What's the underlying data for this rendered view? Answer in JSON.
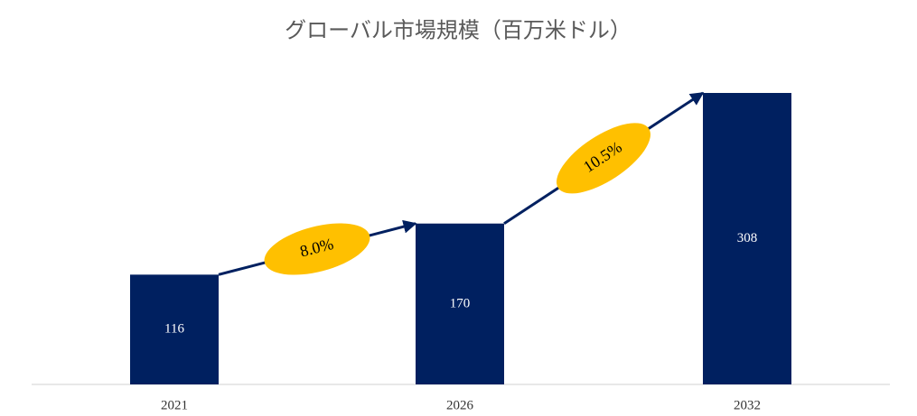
{
  "chart_data": {
    "type": "bar",
    "title": "グローバル市場規模（百万米ドル）",
    "categories": [
      "2021",
      "2026",
      "2032"
    ],
    "values": [
      116,
      170,
      308
    ],
    "color": "#002060",
    "annotations": [
      "8.0%",
      "10.5%"
    ],
    "annotation_color": "#ffc000"
  }
}
